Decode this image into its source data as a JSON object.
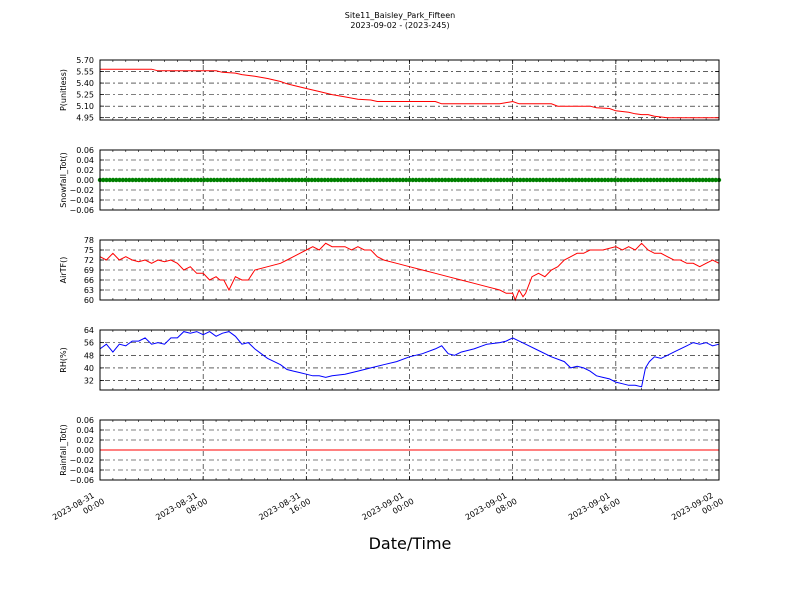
{
  "title": "Site11_Baisley_Park_Fifteen",
  "subtitle": "2023-09-02 - (2023-245)",
  "xlabel": "Date/Time",
  "chart_data": {
    "type": "line",
    "x_ticks": [
      {
        "t": 0,
        "line1": "2023-08-31",
        "line2": "00:00"
      },
      {
        "t": 8,
        "line1": "2023-08-31",
        "line2": "08:00"
      },
      {
        "t": 16,
        "line1": "2023-08-31",
        "line2": "16:00"
      },
      {
        "t": 24,
        "line1": "2023-09-01",
        "line2": "00:00"
      },
      {
        "t": 32,
        "line1": "2023-09-01",
        "line2": "08:00"
      },
      {
        "t": 40,
        "line1": "2023-09-01",
        "line2": "16:00"
      },
      {
        "t": 48,
        "line1": "2023-09-02",
        "line2": "00:00"
      }
    ],
    "x_unit": "hours from 2023-08-31 00:00",
    "xlim": [
      0,
      48
    ],
    "grid": true,
    "panels": [
      {
        "ylabel": "P(unitless)",
        "ylim": [
          4.92,
          5.7
        ],
        "yticks": [
          "4.95",
          "5.10",
          "5.25",
          "5.40",
          "5.55",
          "5.70"
        ],
        "ytick_values": [
          4.95,
          5.1,
          5.25,
          5.4,
          5.55,
          5.7
        ],
        "color": "#ff0000",
        "marker": false,
        "series": {
          "x": [
            0,
            4,
            4.5,
            9,
            9.5,
            10.5,
            11,
            12,
            13,
            14,
            14.5,
            15,
            16,
            17,
            18,
            19,
            20,
            21,
            21.5,
            24,
            26,
            26.5,
            31,
            32,
            32.5,
            35,
            35.5,
            38,
            38.5,
            39.5,
            40,
            41,
            41.5,
            42,
            42.5,
            43,
            44,
            48
          ],
          "y": [
            5.58,
            5.58,
            5.56,
            5.56,
            5.54,
            5.53,
            5.51,
            5.49,
            5.46,
            5.42,
            5.39,
            5.37,
            5.33,
            5.29,
            5.25,
            5.22,
            5.19,
            5.18,
            5.16,
            5.16,
            5.16,
            5.13,
            5.13,
            5.16,
            5.13,
            5.13,
            5.1,
            5.1,
            5.08,
            5.07,
            5.04,
            5.02,
            5.0,
            4.99,
            4.99,
            4.97,
            4.95,
            4.95
          ]
        }
      },
      {
        "ylabel": "Snowfall_Tot()",
        "ylim": [
          -0.06,
          0.06
        ],
        "yticks": [
          "−0.06",
          "−0.04",
          "−0.02",
          "0.00",
          "0.02",
          "0.04",
          "0.06"
        ],
        "ytick_values": [
          -0.06,
          -0.04,
          -0.02,
          0.0,
          0.02,
          0.04,
          0.06
        ],
        "color": "#008000",
        "marker": true,
        "series": {
          "x": [
            0,
            48
          ],
          "y": [
            0,
            0
          ]
        }
      },
      {
        "ylabel": "AirTF()",
        "ylim": [
          60,
          78
        ],
        "yticks": [
          "60",
          "63",
          "66",
          "69",
          "72",
          "75",
          "78"
        ],
        "ytick_values": [
          60,
          63,
          66,
          69,
          72,
          75,
          78
        ],
        "color": "#ff0000",
        "marker": false,
        "series": {
          "x": [
            0,
            0.5,
            1,
            1.5,
            2,
            2.5,
            3,
            3.5,
            4,
            4.5,
            5,
            5.5,
            6,
            6.5,
            7,
            7.5,
            8,
            8.5,
            9,
            9.3,
            9.6,
            10,
            10.5,
            11,
            11.5,
            12,
            13,
            14,
            14.5,
            15,
            15.5,
            16,
            16.5,
            17,
            17.5,
            18,
            18.5,
            19,
            19.5,
            20,
            20.5,
            21,
            21.5,
            22,
            23,
            24,
            25,
            26,
            27,
            28,
            29,
            30,
            31,
            31.5,
            32,
            32.2,
            32.5,
            32.8,
            33,
            33.5,
            34,
            34.5,
            35,
            35.5,
            36,
            36.5,
            37,
            37.5,
            38,
            39,
            40,
            40.5,
            41,
            41.5,
            42,
            42.5,
            43,
            43.5,
            44,
            44.5,
            45,
            45.5,
            46,
            46.5,
            47,
            47.5,
            48
          ],
          "y": [
            73,
            72,
            74,
            72,
            73,
            72,
            71.5,
            72,
            71,
            72,
            71.5,
            72,
            71,
            69,
            70,
            68,
            68,
            66,
            67,
            66,
            66,
            63,
            67,
            66,
            66,
            69,
            70,
            71,
            72,
            73,
            74,
            75,
            76,
            75,
            77,
            76,
            76,
            76,
            75,
            76,
            75,
            75,
            73,
            72,
            71,
            70,
            69,
            68,
            67,
            66,
            65,
            64,
            63,
            62,
            62,
            60,
            63,
            61,
            62,
            67,
            68,
            67,
            69,
            70,
            72,
            73,
            74,
            74,
            75,
            75,
            76,
            75,
            76,
            75,
            77,
            75,
            74,
            74,
            73,
            72,
            72,
            71,
            71,
            70,
            71,
            72,
            71
          ]
        }
      },
      {
        "ylabel": "RH(%)",
        "ylim": [
          26,
          64
        ],
        "yticks": [
          "32",
          "40",
          "48",
          "56",
          "64"
        ],
        "ytick_values": [
          32,
          40,
          48,
          56,
          64
        ],
        "color": "#0000ff",
        "marker": false,
        "series": {
          "x": [
            0,
            0.5,
            1,
            1.5,
            2,
            2.5,
            3,
            3.5,
            4,
            4.5,
            5,
            5.5,
            6,
            6.5,
            7,
            7.5,
            8,
            8.5,
            9,
            9.5,
            10,
            10.5,
            11,
            11.5,
            12,
            12.5,
            13,
            13.5,
            14,
            14.5,
            15,
            15.5,
            16,
            16.5,
            17,
            17.5,
            18,
            19,
            20,
            21,
            22,
            23,
            24,
            25,
            26,
            26.5,
            27,
            27.5,
            28,
            29,
            30,
            31,
            31.5,
            32,
            32.5,
            33,
            34,
            35,
            36,
            36.5,
            37,
            37.5,
            38,
            38.5,
            39,
            39.5,
            40,
            40.5,
            41,
            41.5,
            42,
            42.3,
            42.6,
            43,
            43.5,
            44,
            44.5,
            45,
            45.5,
            46,
            46.5,
            47,
            47.5,
            48
          ],
          "y": [
            52,
            55,
            50,
            55,
            54,
            57,
            57,
            59,
            55,
            56,
            55,
            59,
            59,
            63,
            62,
            63,
            61,
            63,
            60,
            62,
            63,
            60,
            55,
            56,
            52,
            49,
            46,
            44,
            42,
            39,
            38,
            37,
            36,
            35,
            35,
            34,
            35,
            36,
            38,
            40,
            42,
            44,
            47,
            49,
            52,
            54,
            49,
            48,
            50,
            52,
            55,
            56,
            57,
            59,
            57,
            55,
            51,
            47,
            44,
            40,
            41,
            40,
            38,
            35,
            34,
            33,
            31,
            30,
            29,
            29,
            28,
            40,
            44,
            47,
            46,
            48,
            50,
            52,
            54,
            56,
            55,
            56,
            54,
            55
          ]
        }
      },
      {
        "ylabel": "Rainfall_Tot()",
        "ylim": [
          -0.06,
          0.06
        ],
        "yticks": [
          "−0.06",
          "−0.04",
          "−0.02",
          "0.00",
          "0.02",
          "0.04",
          "0.06"
        ],
        "ytick_values": [
          -0.06,
          -0.04,
          -0.02,
          0.0,
          0.02,
          0.04,
          0.06
        ],
        "color": "#ff0000",
        "marker": false,
        "series": {
          "x": [
            0,
            48
          ],
          "y": [
            0,
            0
          ]
        }
      }
    ]
  }
}
